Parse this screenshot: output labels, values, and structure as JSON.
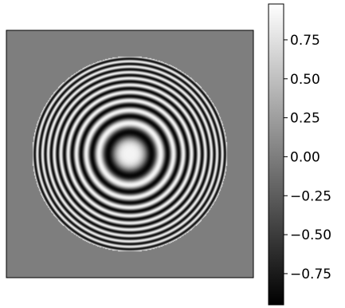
{
  "chart_data": {
    "type": "heatmap",
    "title": "",
    "xlabel": "",
    "ylabel": "",
    "colormap": "gray",
    "colorbar": {
      "min": -0.95,
      "max": 0.98,
      "ticks": [
        0.75,
        0.5,
        0.25,
        0.0,
        -0.25,
        -0.5,
        -0.75
      ],
      "tick_labels": [
        "0.75",
        "0.50",
        "0.25",
        "0.00",
        "−0.25",
        "−0.50",
        "−0.75"
      ]
    },
    "image": {
      "pattern": "radial_fringes",
      "aperture_radius_fraction": 0.79,
      "outside_value": 0.0,
      "fringe_count_to_edge": 10,
      "center_value": 0.9
    },
    "axes_ticks_visible": false
  }
}
